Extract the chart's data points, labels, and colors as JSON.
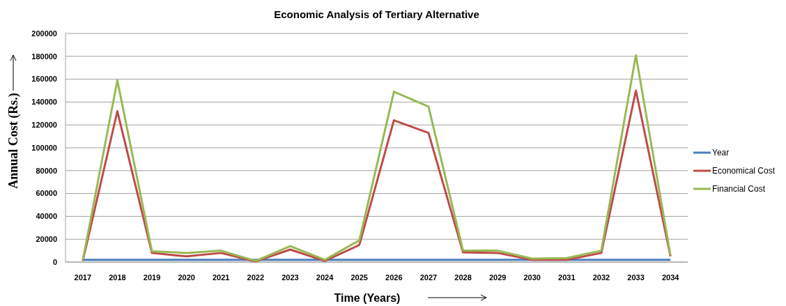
{
  "chart_data": {
    "type": "line",
    "title": "Economic Analysis of Tertiary Alternative",
    "xlabel": "Time (Years)",
    "ylabel": "Annual Cost (Rs.)",
    "categories": [
      "2017",
      "2018",
      "2019",
      "2020",
      "2021",
      "2022",
      "2023",
      "2024",
      "2025",
      "2026",
      "2027",
      "2028",
      "2029",
      "2030",
      "2031",
      "2032",
      "2033",
      "2034"
    ],
    "series": [
      {
        "name": "Year",
        "color": "#4a7ebb",
        "values": [
          2017,
          2018,
          2019,
          2020,
          2021,
          2022,
          2023,
          2024,
          2025,
          2026,
          2027,
          2028,
          2029,
          2030,
          2031,
          2032,
          2033,
          2034
        ]
      },
      {
        "name": "Economical Cost",
        "color": "#be4b48",
        "values": [
          1000,
          132000,
          8000,
          5000,
          8000,
          500,
          11000,
          1000,
          15000,
          124000,
          113000,
          8500,
          8000,
          2000,
          2000,
          8000,
          150000,
          5000
        ]
      },
      {
        "name": "Financial Cost",
        "color": "#98b954",
        "values": [
          1500,
          159000,
          9500,
          8000,
          10000,
          1000,
          14000,
          2000,
          19000,
          149000,
          136000,
          10000,
          10000,
          3000,
          3500,
          10000,
          181000,
          6000
        ]
      }
    ],
    "ylim": [
      0,
      200000
    ],
    "yticks": [
      0,
      20000,
      40000,
      60000,
      80000,
      100000,
      120000,
      140000,
      160000,
      180000,
      200000
    ],
    "grid": "y",
    "legend": "right",
    "marker": "none",
    "line_style": "solid"
  }
}
